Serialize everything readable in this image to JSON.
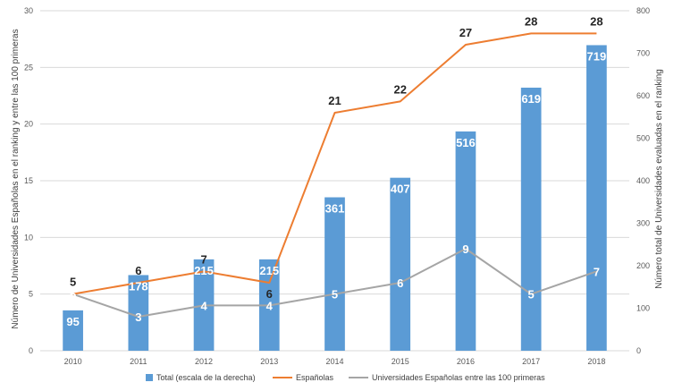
{
  "chart_data": {
    "type": "bar+line",
    "categories": [
      "2010",
      "2011",
      "2012",
      "2013",
      "2014",
      "2015",
      "2016",
      "2017",
      "2018"
    ],
    "series": [
      {
        "name": "Total (escala de la derecha)",
        "type": "bar",
        "axis": "right",
        "values": [
          95,
          178,
          215,
          215,
          361,
          407,
          516,
          619,
          719
        ],
        "color": "#5b9bd5"
      },
      {
        "name": "Españolas",
        "type": "line",
        "axis": "left",
        "values": [
          5,
          6,
          7,
          6,
          21,
          22,
          27,
          28,
          28
        ],
        "color": "#ed7d31"
      },
      {
        "name": "Universidades Españolas entre las 100 primeras",
        "type": "line",
        "axis": "left",
        "values": [
          5,
          3,
          4,
          4,
          5,
          6,
          9,
          5,
          7
        ],
        "color": "#a5a5a5"
      }
    ],
    "ylabel_left": "Número de Universidades Españolas en el ranking y entre las 100 primeras",
    "ylabel_right": "Número total de Universidades evaluadas en el ranking",
    "ylim_left": [
      0,
      30
    ],
    "yticks_left": [
      "0",
      "5",
      "10",
      "15",
      "20",
      "25",
      "30"
    ],
    "ylim_right": [
      0,
      800
    ],
    "yticks_right": [
      "0",
      "100",
      "200",
      "300",
      "400",
      "500",
      "600",
      "700",
      "800"
    ],
    "grid": true,
    "legend": "bottom"
  }
}
